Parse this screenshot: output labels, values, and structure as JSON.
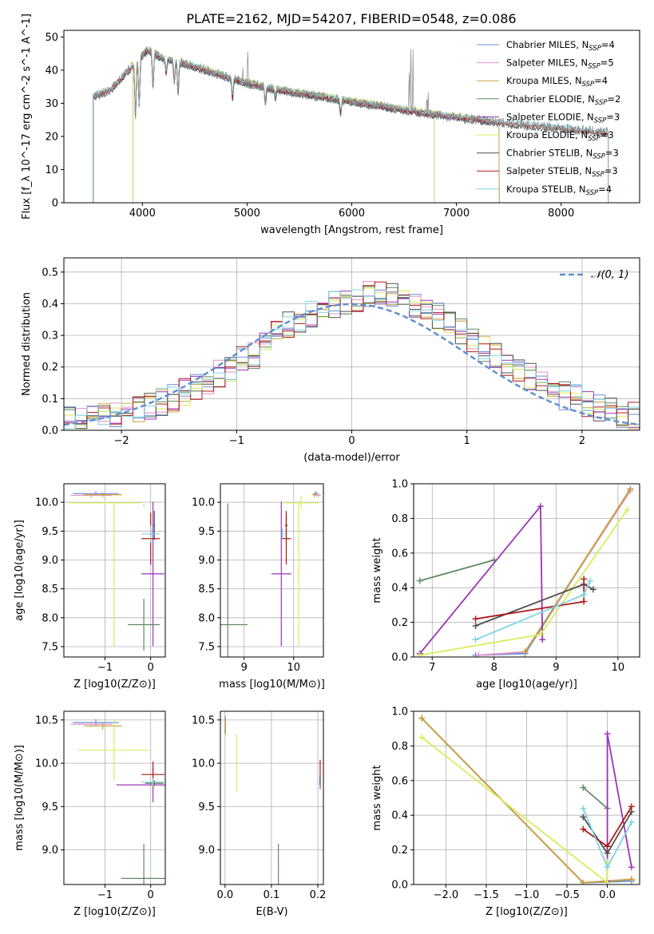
{
  "title": "PLATE=2162, MJD=54207, FIBERID=0548, z=0.086",
  "colors": {
    "Chabrier MILES": "#6a8fd8",
    "Salpeter MILES": "#e592c8",
    "Kroupa MILES": "#c8a13a",
    "Chabrier ELODIE": "#5e8a62",
    "Salpeter ELODIE": "#9b35b5",
    "Kroupa ELODIE": "#d8ec5e",
    "Chabrier STELIB": "#505050",
    "Salpeter STELIB": "#b01818",
    "Kroupa STELIB": "#80d4e0"
  },
  "chart_data": [
    {
      "id": "spectrum",
      "type": "line",
      "xlabel": "wavelength [Angstrom, rest frame]",
      "ylabel": "Flux [f_λ 10^-17 erg cm^-2 s^-1 A^-1]",
      "xlim": [
        3250,
        8750
      ],
      "ylim": [
        0,
        52
      ],
      "xticks": [
        4000,
        5000,
        6000,
        7000,
        8000
      ],
      "yticks": [
        0,
        10,
        20,
        30,
        40,
        50
      ],
      "legend_position": "top-right",
      "legend": [
        {
          "model": "Chabrier MILES",
          "text": "Chabrier MILES, N",
          "sub": "SSP",
          "n": "=4"
        },
        {
          "model": "Salpeter MILES",
          "text": "Salpeter MILES, N",
          "sub": "SSP",
          "n": "=5"
        },
        {
          "model": "Kroupa MILES",
          "text": "Kroupa MILES, N",
          "sub": "SSP",
          "n": "=4"
        },
        {
          "model": "Chabrier ELODIE",
          "text": "Chabrier ELODIE, N",
          "sub": "SSP",
          "n": "=2"
        },
        {
          "model": "Salpeter ELODIE",
          "text": "Salpeter ELODIE, N",
          "sub": "SSP",
          "n": "=3"
        },
        {
          "model": "Kroupa ELODIE",
          "text": "Kroupa ELODIE, N",
          "sub": "SSP",
          "n": "=3"
        },
        {
          "model": "Chabrier STELIB",
          "text": "Chabrier STELIB, N",
          "sub": "SSP",
          "n": "=3"
        },
        {
          "model": "Salpeter STELIB",
          "text": "Salpeter STELIB, N",
          "sub": "SSP",
          "n": "=3"
        },
        {
          "model": "Kroupa STELIB",
          "text": "Kroupa STELIB, N",
          "sub": "SSP",
          "n": "=4"
        }
      ],
      "continuum": [
        [
          3530,
          32
        ],
        [
          3700,
          34
        ],
        [
          3900,
          41
        ],
        [
          4050,
          46
        ],
        [
          4200,
          43.5
        ],
        [
          4400,
          42
        ],
        [
          4600,
          40
        ],
        [
          4800,
          38
        ],
        [
          5000,
          36
        ],
        [
          5300,
          34
        ],
        [
          5600,
          32.5
        ],
        [
          6000,
          30.5
        ],
        [
          6300,
          29
        ],
        [
          6600,
          27.5
        ],
        [
          6800,
          26.5
        ],
        [
          7200,
          25
        ],
        [
          7600,
          23.5
        ],
        [
          8000,
          22.5
        ],
        [
          8300,
          21.5
        ],
        [
          8500,
          21
        ]
      ],
      "absorption_lines": [
        [
          3934,
          16
        ],
        [
          3969,
          14
        ],
        [
          4102,
          10
        ],
        [
          4227,
          4
        ],
        [
          4305,
          6
        ],
        [
          4341,
          10
        ],
        [
          4861,
          6
        ],
        [
          5175,
          5
        ],
        [
          5270,
          2.5
        ],
        [
          5893,
          4
        ]
      ],
      "emission_lines": [
        [
          3727,
          4
        ],
        [
          4861,
          4
        ],
        [
          4959,
          6
        ],
        [
          5007,
          14
        ],
        [
          6548,
          16
        ],
        [
          6563,
          27
        ],
        [
          6584,
          22
        ],
        [
          6717,
          8
        ],
        [
          6731,
          6
        ]
      ],
      "model_ranges": [
        {
          "model": "Chabrier MILES",
          "x": [
            3530,
            7410
          ]
        },
        {
          "model": "Salpeter MILES",
          "x": [
            3530,
            7410
          ]
        },
        {
          "model": "Kroupa MILES",
          "x": [
            3530,
            7410
          ]
        },
        {
          "model": "Chabrier ELODIE",
          "x": [
            3910,
            6790
          ]
        },
        {
          "model": "Salpeter ELODIE",
          "x": [
            3910,
            6790
          ]
        },
        {
          "model": "Kroupa ELODIE",
          "x": [
            3910,
            6790
          ]
        },
        {
          "model": "Chabrier STELIB",
          "x": [
            3530,
            8450
          ]
        },
        {
          "model": "Salpeter STELIB",
          "x": [
            3530,
            8450
          ]
        },
        {
          "model": "Kroupa STELIB",
          "x": [
            3530,
            8450
          ]
        }
      ]
    },
    {
      "id": "residuals",
      "type": "step",
      "xlabel": "(data-model)/error",
      "ylabel": "Normed distribution",
      "xlim": [
        -2.5,
        2.5
      ],
      "ylim": [
        0,
        0.545
      ],
      "xticks": [
        -2,
        -1,
        0,
        1,
        2
      ],
      "yticks": [
        0.0,
        0.1,
        0.2,
        0.3,
        0.4,
        0.5
      ],
      "bin_width": 0.1,
      "normal_curve": {
        "label": "𝒩(0, 1)",
        "mu": 0,
        "sigma": 1
      },
      "hist_base": [
        0.03,
        0.035,
        0.04,
        0.045,
        0.05,
        0.06,
        0.07,
        0.08,
        0.09,
        0.1,
        0.12,
        0.14,
        0.16,
        0.18,
        0.2,
        0.22,
        0.24,
        0.27,
        0.3,
        0.33,
        0.35,
        0.37,
        0.39,
        0.4,
        0.41,
        0.42,
        0.43,
        0.43,
        0.42,
        0.41,
        0.4,
        0.38,
        0.36,
        0.34,
        0.31,
        0.29,
        0.26,
        0.24,
        0.21,
        0.19,
        0.17,
        0.15,
        0.13,
        0.11,
        0.1,
        0.085,
        0.07,
        0.06,
        0.05,
        0.045
      ]
    },
    {
      "id": "age_vs_Z",
      "type": "errorbar",
      "xlabel": "Z [log10(Z/Z⊙)]",
      "ylabel": "age [log10(age/yr)]",
      "xlim": [
        -1.9,
        0.32
      ],
      "ylim": [
        7.32,
        10.32
      ],
      "xticks": [
        -1,
        0
      ],
      "yticks": [
        7.5,
        8.0,
        8.5,
        9.0,
        9.5,
        10.0
      ],
      "points": [
        {
          "model": "Chabrier MILES",
          "x": -1.2,
          "y": 10.15,
          "xerr": 0.5,
          "yerr": 0.04
        },
        {
          "model": "Salpeter MILES",
          "x": -1.3,
          "y": 10.12,
          "xerr": 0.45,
          "yerr": 0.04
        },
        {
          "model": "Kroupa MILES",
          "x": -1.05,
          "y": 10.13,
          "xerr": 0.42,
          "yerr": 0.04
        },
        {
          "model": "Kroupa ELODIE",
          "x": -1.0,
          "y": 9.99,
          "xerr": 0.8,
          "yerr": 0.03
        },
        {
          "model": "Salpeter ELODIE",
          "x": 0.05,
          "y": 8.76,
          "xerr": 0.25,
          "yerr": 1.25
        },
        {
          "model": "Kroupa ELODIE",
          "x": -0.8,
          "y": 8.76,
          "xerr": 0.02,
          "yerr": 1.25
        },
        {
          "model": "Chabrier ELODIE",
          "x": -0.15,
          "y": 7.88,
          "xerr": 0.35,
          "yerr": 0.45
        },
        {
          "model": "Chabrier ELODIE",
          "x": -0.15,
          "y": 9.95,
          "xerr": 0.01,
          "yerr": 0.0
        },
        {
          "model": "Chabrier STELIB",
          "x": 0.08,
          "y": 9.6,
          "xerr": 0.02,
          "yerr": 0.25
        },
        {
          "model": "Salpeter STELIB",
          "x": 0.0,
          "y": 9.37,
          "xerr": 0.2,
          "yerr": 0.45
        },
        {
          "model": "Kroupa STELIB",
          "x": 0.0,
          "y": 9.45,
          "xerr": 0.2,
          "yerr": 0.15
        }
      ]
    },
    {
      "id": "age_vs_mass",
      "type": "errorbar",
      "xlabel": "mass [log10(M/M⊙)]",
      "ylabel": "",
      "xlim": [
        8.52,
        10.6
      ],
      "ylim": [
        7.32,
        10.32
      ],
      "xticks": [
        9,
        10
      ],
      "yticks": [
        7.5,
        8.0,
        8.5,
        9.0,
        9.5,
        10.0
      ],
      "points": [
        {
          "model": "Chabrier MILES",
          "x": 10.45,
          "y": 10.15,
          "xerr": 0.05,
          "yerr": 0.04
        },
        {
          "model": "Salpeter MILES",
          "x": 10.5,
          "y": 10.12,
          "xerr": 0.05,
          "yerr": 0.04
        },
        {
          "model": "Kroupa MILES",
          "x": 10.42,
          "y": 10.13,
          "xerr": 0.05,
          "yerr": 0.04
        },
        {
          "model": "Kroupa ELODIE",
          "x": 10.15,
          "y": 9.99,
          "xerr": 0.35,
          "yerr": 0.12
        },
        {
          "model": "Salpeter ELODIE",
          "x": 9.75,
          "y": 8.76,
          "xerr": 0.2,
          "yerr": 1.25
        },
        {
          "model": "Kroupa ELODIE",
          "x": 10.1,
          "y": 8.76,
          "xerr": 0.02,
          "yerr": 1.25
        },
        {
          "model": "Chabrier ELODIE",
          "x": 8.67,
          "y": 7.88,
          "xerr": 0.4,
          "yerr": 2.1
        },
        {
          "model": "Chabrier STELIB",
          "x": 9.85,
          "y": 9.6,
          "xerr": 0.03,
          "yerr": 0.25
        },
        {
          "model": "Salpeter STELIB",
          "x": 9.85,
          "y": 9.37,
          "xerr": 0.1,
          "yerr": 0.45
        },
        {
          "model": "Kroupa STELIB",
          "x": 9.77,
          "y": 9.45,
          "xerr": 0.05,
          "yerr": 0.1
        }
      ]
    },
    {
      "id": "massweight_vs_age",
      "type": "line",
      "xlabel": "age [log10(age/yr)]",
      "ylabel": "mass weight",
      "xlim": [
        6.7,
        10.35
      ],
      "ylim": [
        0,
        1
      ],
      "xticks": [
        7,
        8,
        9,
        10
      ],
      "yticks": [
        0.0,
        0.2,
        0.4,
        0.6,
        0.8,
        1.0
      ],
      "series": [
        {
          "model": "Chabrier MILES",
          "x": [
            7.7,
            8.5,
            10.2
          ],
          "y": [
            0.01,
            0.02,
            0.97
          ]
        },
        {
          "model": "Salpeter MILES",
          "x": [
            7.75,
            8.5,
            10.2
          ],
          "y": [
            0.01,
            0.03,
            0.96
          ]
        },
        {
          "model": "Kroupa MILES",
          "x": [
            8.5,
            10.2
          ],
          "y": [
            0.03,
            0.97
          ]
        },
        {
          "model": "Chabrier ELODIE",
          "x": [
            6.8,
            8.0
          ],
          "y": [
            0.44,
            0.56
          ]
        },
        {
          "model": "Salpeter ELODIE",
          "x": [
            6.8,
            8.75,
            8.78
          ],
          "y": [
            0.02,
            0.87,
            0.1
          ]
        },
        {
          "model": "Kroupa ELODIE",
          "x": [
            6.8,
            8.75,
            10.15
          ],
          "y": [
            0.01,
            0.13,
            0.85
          ]
        },
        {
          "model": "Chabrier STELIB",
          "x": [
            7.7,
            9.45,
            9.6
          ],
          "y": [
            0.18,
            0.42,
            0.39
          ]
        },
        {
          "model": "Salpeter STELIB",
          "x": [
            7.7,
            9.45,
            9.45
          ],
          "y": [
            0.22,
            0.32,
            0.45
          ]
        },
        {
          "model": "Kroupa STELIB",
          "x": [
            7.7,
            9.45,
            9.55
          ],
          "y": [
            0.1,
            0.36,
            0.44
          ]
        }
      ]
    },
    {
      "id": "mass_vs_Z",
      "type": "errorbar",
      "xlabel": "Z [log10(Z/Z⊙)]",
      "ylabel": "mass [log10(M/M⊙)]",
      "xlim": [
        -1.9,
        0.32
      ],
      "ylim": [
        8.6,
        10.6
      ],
      "xticks": [
        -1,
        0
      ],
      "yticks": [
        9.0,
        9.5,
        10.0,
        10.5
      ],
      "points": [
        {
          "model": "Chabrier MILES",
          "x": -1.2,
          "y": 10.47,
          "xerr": 0.5,
          "yerr": 0.04
        },
        {
          "model": "Salpeter MILES",
          "x": -1.3,
          "y": 10.45,
          "xerr": 0.45,
          "yerr": 0.03
        },
        {
          "model": "Kroupa MILES",
          "x": -1.05,
          "y": 10.43,
          "xerr": 0.42,
          "yerr": 0.04
        },
        {
          "model": "Kroupa ELODIE",
          "x": -0.8,
          "y": 10.15,
          "xerr": 0.8,
          "yerr": 0.35
        },
        {
          "model": "Salpeter ELODIE",
          "x": 0.05,
          "y": 9.75,
          "xerr": 0.8,
          "yerr": 0.2
        },
        {
          "model": "Chabrier ELODIE",
          "x": -0.15,
          "y": 8.67,
          "xerr": 0.5,
          "yerr": 0.4
        },
        {
          "model": "Chabrier STELIB",
          "x": 0.08,
          "y": 9.77,
          "xerr": 0.2,
          "yerr": 0.03
        },
        {
          "model": "Salpeter STELIB",
          "x": 0.05,
          "y": 9.87,
          "xerr": 0.25,
          "yerr": 0.15
        },
        {
          "model": "Kroupa STELIB",
          "x": 0.05,
          "y": 9.78,
          "xerr": 0.25,
          "yerr": 0.05
        }
      ]
    },
    {
      "id": "mass_vs_EBV",
      "type": "errorbar",
      "xlabel": "E(B-V)",
      "ylabel": "",
      "xlim": [
        -0.01,
        0.212
      ],
      "ylim": [
        8.6,
        10.6
      ],
      "xticks": [
        0.0,
        0.1,
        0.2
      ],
      "yticks": [
        9.0,
        9.5,
        10.0,
        10.5
      ],
      "points": [
        {
          "model": "Chabrier MILES",
          "x": 0.0,
          "y": 10.45,
          "xerr": 0.001,
          "yerr": 0.1
        },
        {
          "model": "Salpeter MILES",
          "x": 0.0,
          "y": 10.45,
          "xerr": 0.001,
          "yerr": 0.05
        },
        {
          "model": "Kroupa MILES",
          "x": 0.001,
          "y": 10.43,
          "xerr": 0.001,
          "yerr": 0.1
        },
        {
          "model": "Kroupa ELODIE",
          "x": 0.025,
          "y": 10.0,
          "xerr": 0.001,
          "yerr": 0.33
        },
        {
          "model": "Chabrier ELODIE",
          "x": 0.115,
          "y": 8.75,
          "xerr": 0.001,
          "yerr": 0.32
        },
        {
          "model": "Salpeter STELIB",
          "x": 0.205,
          "y": 9.87,
          "xerr": 0.001,
          "yerr": 0.17
        },
        {
          "model": "Kroupa STELIB",
          "x": 0.204,
          "y": 9.78,
          "xerr": 0.001,
          "yerr": 0.08
        },
        {
          "model": "Chabrier STELIB",
          "x": 0.205,
          "y": 9.8,
          "xerr": 0.001,
          "yerr": 0.05
        }
      ]
    },
    {
      "id": "massweight_vs_Z",
      "type": "line",
      "xlabel": "Z [log10(Z/Z⊙)]",
      "ylabel": "mass weight",
      "xlim": [
        -2.4,
        0.4
      ],
      "ylim": [
        0,
        1
      ],
      "xticks": [
        -2.0,
        -1.5,
        -1.0,
        -0.5,
        0.0
      ],
      "yticks": [
        0.0,
        0.2,
        0.4,
        0.6,
        0.8,
        1.0
      ],
      "series": [
        {
          "model": "Chabrier MILES",
          "x": [
            -2.3,
            -0.3,
            0.3
          ],
          "y": [
            0.96,
            0.01,
            0.02
          ]
        },
        {
          "model": "Salpeter MILES",
          "x": [
            -2.3,
            -0.3,
            0.3
          ],
          "y": [
            0.96,
            0.01,
            0.03
          ]
        },
        {
          "model": "Kroupa MILES",
          "x": [
            -2.3,
            -0.3,
            0.3
          ],
          "y": [
            0.96,
            0.01,
            0.03
          ]
        },
        {
          "model": "Chabrier ELODIE",
          "x": [
            -0.3,
            0.0
          ],
          "y": [
            0.56,
            0.44
          ]
        },
        {
          "model": "Salpeter ELODIE",
          "x": [
            0.0,
            0.0,
            0.3
          ],
          "y": [
            0.02,
            0.87,
            0.1
          ]
        },
        {
          "model": "Kroupa ELODIE",
          "x": [
            -2.3,
            0.0,
            0.0
          ],
          "y": [
            0.85,
            0.01,
            0.13
          ]
        },
        {
          "model": "Chabrier STELIB",
          "x": [
            -0.3,
            0.0,
            0.3
          ],
          "y": [
            0.39,
            0.18,
            0.42
          ]
        },
        {
          "model": "Salpeter STELIB",
          "x": [
            -0.3,
            0.0,
            0.3
          ],
          "y": [
            0.32,
            0.22,
            0.45
          ]
        },
        {
          "model": "Kroupa STELIB",
          "x": [
            -0.3,
            0.0,
            0.3
          ],
          "y": [
            0.44,
            0.1,
            0.36
          ]
        }
      ]
    }
  ]
}
